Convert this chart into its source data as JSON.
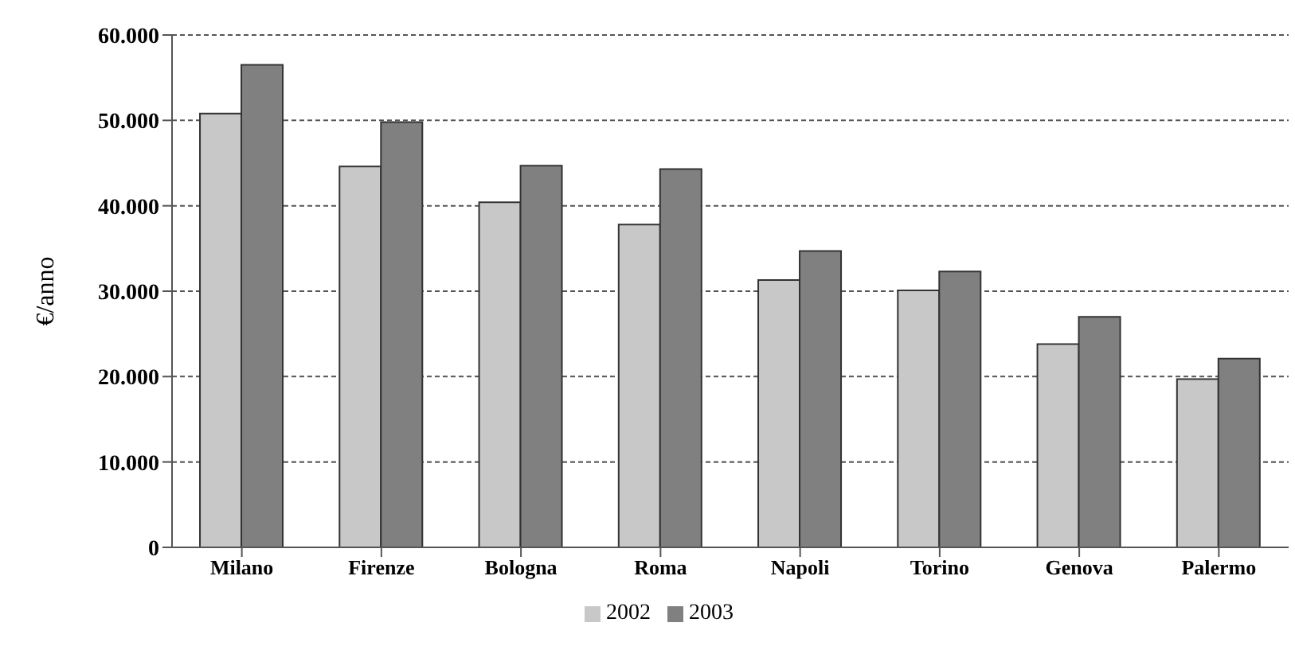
{
  "chart_data": {
    "type": "bar",
    "ylabel": "€/anno",
    "categories": [
      "Milano",
      "Firenze",
      "Bologna",
      "Roma",
      "Napoli",
      "Torino",
      "Genova",
      "Palermo"
    ],
    "series": [
      {
        "name": "2002",
        "color": "#c8c8c8",
        "values": [
          50800,
          44600,
          40400,
          37800,
          31300,
          30100,
          23800,
          19700
        ]
      },
      {
        "name": "2003",
        "color": "#808080",
        "values": [
          56500,
          49800,
          44700,
          44300,
          34700,
          32300,
          27000,
          22100
        ]
      }
    ],
    "ylim": [
      0,
      60000
    ],
    "yticks": [
      {
        "value": 0,
        "label": "0"
      },
      {
        "value": 10000,
        "label": "10.000"
      },
      {
        "value": 20000,
        "label": "20.000"
      },
      {
        "value": 30000,
        "label": "30.000"
      },
      {
        "value": 40000,
        "label": "40.000"
      },
      {
        "value": 50000,
        "label": "50.000"
      },
      {
        "value": 60000,
        "label": "60.000"
      }
    ],
    "grid": "y",
    "legend": "bottom"
  }
}
